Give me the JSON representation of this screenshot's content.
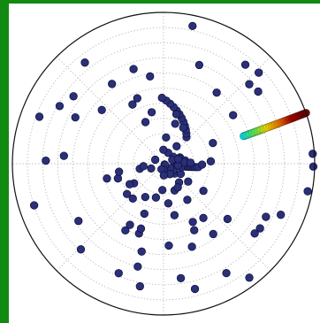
{
  "chart_data": {
    "type": "scatter",
    "coordinate_system": "polar",
    "title": "",
    "r_range": [
      0,
      1
    ],
    "r_grid_count": 9,
    "angular_grid_deg": [
      0,
      45,
      90,
      135,
      180,
      225,
      270,
      315
    ],
    "grid": true,
    "grid_style": "dotted",
    "marker_fill": "#2a2f78",
    "marker_edge": "#0c0f3a",
    "trail_colors": [
      "#00e5ff",
      "#5cff5c",
      "#ffe600",
      "#ff7f00",
      "#b30000",
      "#6b0000"
    ],
    "points": [
      {
        "theta": 20.8,
        "r": 0.116
      },
      {
        "theta": 16.9,
        "r": 0.117
      },
      {
        "theta": -14.4,
        "r": 0.071
      },
      {
        "theta": -41.3,
        "r": 0.098
      },
      {
        "theta": -30.9,
        "r": 0.079
      },
      {
        "theta": -33.7,
        "r": 0.054
      },
      {
        "theta": -38.7,
        "r": 0.009
      },
      {
        "theta": -40.3,
        "r": 0.015
      },
      {
        "theta": -1.3,
        "r": 0.255
      },
      {
        "theta": -30.7,
        "r": 0.132
      },
      {
        "theta": -0.8,
        "r": 0.138
      },
      {
        "theta": -86.2,
        "r": 0.038
      },
      {
        "theta": -167.9,
        "r": 0.161
      },
      {
        "theta": -110.7,
        "r": 0.039
      },
      {
        "theta": -58.5,
        "r": 0.081
      },
      {
        "theta": -88.5,
        "r": 0.077
      },
      {
        "theta": -35.9,
        "r": 0.201
      },
      {
        "theta": 0.5,
        "r": 0.104
      },
      {
        "theta": 6.6,
        "r": 0.087
      },
      {
        "theta": 154.1,
        "r": 0.061
      },
      {
        "theta": 4.1,
        "r": 0.099
      },
      {
        "theta": -11.2,
        "r": 0.118
      },
      {
        "theta": 8.6,
        "r": 0.144
      },
      {
        "theta": 4.0,
        "r": 0.137
      },
      {
        "theta": -102.7,
        "r": 0.229
      },
      {
        "theta": 53.1,
        "r": 0.144
      },
      {
        "theta": -173.0,
        "r": 0.134
      },
      {
        "theta": -50.4,
        "r": 0.161
      },
      {
        "theta": 35.5,
        "r": 0.079
      },
      {
        "theta": -67.5,
        "r": 0.191
      },
      {
        "theta": -58.9,
        "r": 0.183
      },
      {
        "theta": 67.1,
        "r": 0.078
      },
      {
        "theta": -159.1,
        "r": 0.088
      },
      {
        "theta": 90.6,
        "r": 0.092
      },
      {
        "theta": -92.5,
        "r": 0.174
      },
      {
        "theta": 23.7,
        "r": 0.063
      },
      {
        "theta": -7.0,
        "r": 0.096
      },
      {
        "theta": 2.0,
        "r": 0.179
      },
      {
        "theta": 84.5,
        "r": 0.174
      },
      {
        "theta": 17.4,
        "r": 0.101
      },
      {
        "theta": 2.9,
        "r": 0.313
      },
      {
        "theta": -118.8,
        "r": 0.251
      },
      {
        "theta": -34.2,
        "r": 0.319
      },
      {
        "theta": 75.4,
        "r": 0.338
      },
      {
        "theta": -165.4,
        "r": 0.387
      },
      {
        "theta": 113.5,
        "r": 0.3
      },
      {
        "theta": -111.0,
        "r": 0.354
      },
      {
        "theta": 73.7,
        "r": 0.275
      },
      {
        "theta": -56.6,
        "r": 0.286
      },
      {
        "theta": -162.2,
        "r": 0.317
      },
      {
        "theta": -146.4,
        "r": 0.234
      },
      {
        "theta": -78.0,
        "r": 0.348
      },
      {
        "theta": -83.1,
        "r": 0.264
      },
      {
        "theta": -131.4,
        "r": 0.307
      },
      {
        "theta": 61.3,
        "r": 0.271
      },
      {
        "theta": 22.7,
        "r": 0.354
      },
      {
        "theta": -140.4,
        "r": 0.314
      },
      {
        "theta": -148.8,
        "r": 0.262
      },
      {
        "theta": -119.8,
        "r": 0.508
      },
      {
        "theta": -118.8,
        "r": 0.461
      },
      {
        "theta": -109.4,
        "r": 0.489
      },
      {
        "theta": -109.2,
        "r": 0.454
      },
      {
        "theta": -104.0,
        "r": 0.598
      },
      {
        "theta": -86.3,
        "r": 0.542
      },
      {
        "theta": -71.1,
        "r": 0.58
      },
      {
        "theta": -65.2,
        "r": 0.484
      },
      {
        "theta": -63.3,
        "r": 0.431
      },
      {
        "theta": -54.7,
        "r": 0.569
      },
      {
        "theta": -53.7,
        "r": 0.445
      },
      {
        "theta": -40.8,
        "r": 0.559
      },
      {
        "theta": -33.8,
        "r": 0.768
      },
      {
        "theta": -112.3,
        "r": 0.782
      },
      {
        "theta": -104.1,
        "r": 0.701
      },
      {
        "theta": -100.9,
        "r": 0.825
      },
      {
        "theta": -146.1,
        "r": 0.678
      },
      {
        "theta": -134.0,
        "r": 0.787
      },
      {
        "theta": -162.2,
        "r": 0.899
      },
      {
        "theta": -169.8,
        "r": 0.299
      },
      {
        "theta": 178.5,
        "r": 0.779
      },
      {
        "theta": 175.5,
        "r": 0.661
      },
      {
        "theta": 159.3,
        "r": 0.878
      },
      {
        "theta": 151.0,
        "r": 0.786
      },
      {
        "theta": 152.3,
        "r": 0.659
      },
      {
        "theta": 143.2,
        "r": 0.744
      },
      {
        "theta": 139.0,
        "r": 0.541
      },
      {
        "theta": 127.9,
        "r": 0.847
      },
      {
        "theta": 122.9,
        "r": 0.628
      },
      {
        "theta": 117.7,
        "r": 0.442
      },
      {
        "theta": 107.6,
        "r": 0.656
      },
      {
        "theta": 98.8,
        "r": 0.584
      },
      {
        "theta": 103.0,
        "r": 0.349
      },
      {
        "theta": 111.9,
        "r": 0.466
      },
      {
        "theta": 78.1,
        "r": 0.93
      },
      {
        "theta": 70.1,
        "r": 0.694
      },
      {
        "theta": 53.2,
        "r": 0.587
      },
      {
        "theta": 50.4,
        "r": 0.849
      },
      {
        "theta": 43.7,
        "r": 0.871
      },
      {
        "theta": 42.8,
        "r": 0.773
      },
      {
        "theta": 37.3,
        "r": 0.787
      },
      {
        "theta": 34.9,
        "r": 0.561
      },
      {
        "theta": 3.8,
        "r": 0.989
      },
      {
        "theta": -1.1,
        "r": 0.991
      },
      {
        "theta": -10.8,
        "r": 0.971
      },
      {
        "theta": -23.5,
        "r": 0.846
      },
      {
        "theta": -27.4,
        "r": 0.763
      },
      {
        "theta": -37.4,
        "r": 0.759
      },
      {
        "theta": -60.1,
        "r": 0.834
      },
      {
        "theta": -75.9,
        "r": 0.853
      },
      {
        "theta": -81.4,
        "r": 0.765
      },
      {
        "theta": -53.0,
        "r": 0.943
      }
    ],
    "trails": [
      {
        "theta_range": [
          49.1,
          91.4
        ],
        "r_range": [
          0.232,
          0.436
        ],
        "count": 12
      },
      {
        "theta_range": [
          19.0,
          19.6
        ],
        "r_range": [
          0.56,
          1.001
        ],
        "count": 50
      },
      {
        "theta_range": [
          -9.1,
          -5.5
        ],
        "r_range": [
          0.078,
          0.232
        ],
        "count": 14
      }
    ]
  }
}
